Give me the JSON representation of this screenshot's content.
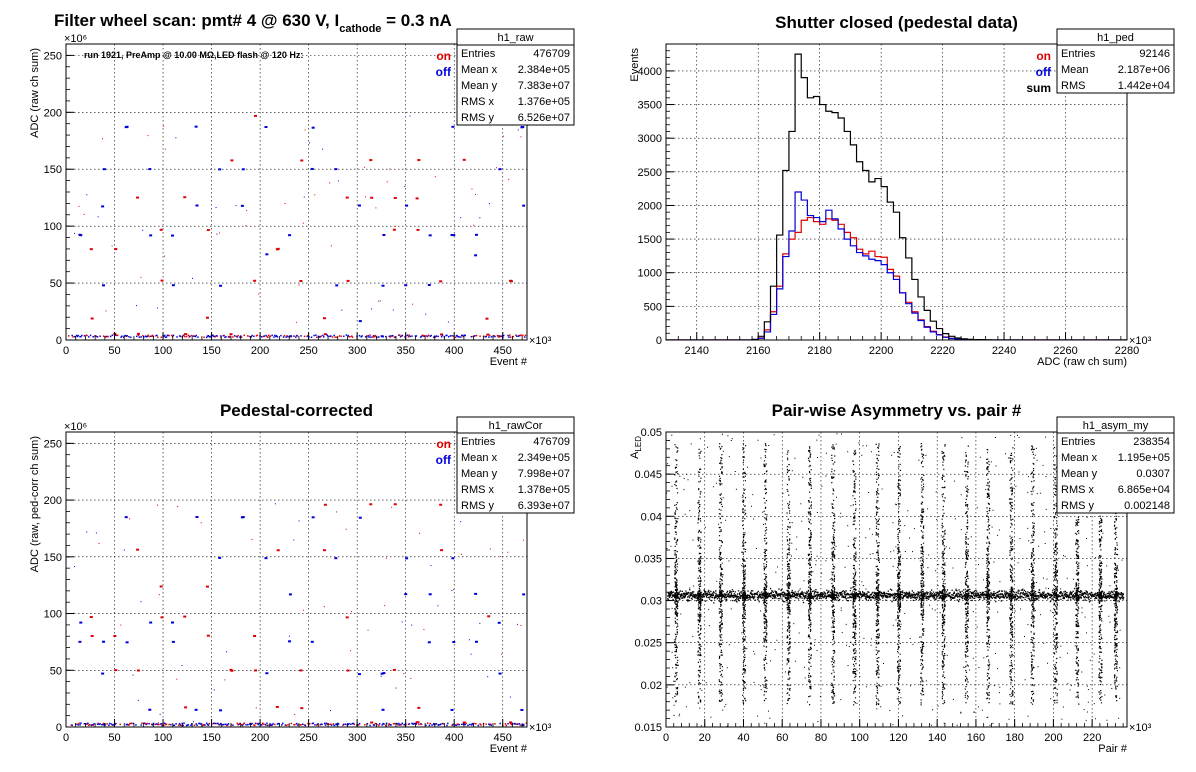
{
  "chart_data": [
    {
      "id": "raw",
      "type": "scatter",
      "title": "Filter wheel scan: pmt#   4 @   630 V, I",
      "title_sub": "cathode",
      "title_tail": "  = 0.3 nA",
      "run_label": "run 1921, PreAmp @ 10.00 MΩ,LED flash @  120 Hz:",
      "xlabel": "Event #",
      "ylabel": "ADC (raw ch sum)",
      "x_exponent": "×10³",
      "y_exponent": "×10⁶",
      "xlim": [
        0,
        475
      ],
      "ylim": [
        0,
        260
      ],
      "xticks": [
        0,
        50,
        100,
        150,
        200,
        250,
        300,
        350,
        400,
        450
      ],
      "yticks": [
        0,
        50,
        100,
        150,
        200,
        250
      ],
      "legend": [
        {
          "name": "on",
          "color": "#e00000"
        },
        {
          "name": "off",
          "color": "#0000dd"
        }
      ],
      "stats": {
        "name": "h1_raw",
        "rows": [
          [
            "Entries",
            "476709"
          ],
          [
            "Mean x",
            "2.384e+05"
          ],
          [
            "Mean y",
            "7.383e+07"
          ],
          [
            "RMS x",
            "1.376e+05"
          ],
          [
            "RMS y",
            "6.526e+07"
          ]
        ]
      },
      "levels_on": [
        197,
        158,
        125,
        97,
        80,
        52,
        19,
        5
      ],
      "levels_off": [
        187,
        150,
        118,
        92,
        75,
        48,
        17,
        3
      ],
      "step_period": 24,
      "x_max": 475
    },
    {
      "id": "ped",
      "type": "histogram",
      "title": "Shutter closed (pedestal data)",
      "xlabel": "ADC (raw ch sum)",
      "ylabel": "Events",
      "x_exponent": "×10³",
      "xlim": [
        2130,
        2280
      ],
      "ylim": [
        0,
        4400
      ],
      "xticks": [
        2140,
        2160,
        2180,
        2200,
        2220,
        2240,
        2260,
        2280
      ],
      "yticks": [
        0,
        500,
        1000,
        1500,
        2000,
        2500,
        3000,
        3500,
        4000
      ],
      "legend": [
        {
          "name": "on",
          "color": "#e00000"
        },
        {
          "name": "off",
          "color": "#0000dd"
        },
        {
          "name": "sum",
          "color": "#000000"
        }
      ],
      "stats": {
        "name": "h1_ped",
        "rows": [
          [
            "Entries",
            "92146"
          ],
          [
            "Mean",
            "2.187e+06"
          ],
          [
            "RMS",
            "1.442e+04"
          ]
        ]
      },
      "bin_width": 2,
      "bin_start": 2130,
      "series": [
        {
          "name": "on",
          "color": "#e00000",
          "values": [
            0,
            0,
            0,
            0,
            0,
            0,
            0,
            0,
            0,
            0,
            0,
            0,
            0,
            0,
            5,
            30,
            150,
            420,
            800,
            1280,
            1500,
            1600,
            1780,
            1820,
            1760,
            1720,
            1800,
            1780,
            1720,
            1600,
            1520,
            1350,
            1280,
            1320,
            1240,
            1230,
            1050,
            950,
            700,
            560,
            420,
            300,
            200,
            130,
            80,
            45,
            25,
            15,
            10,
            5,
            3,
            2,
            1,
            0,
            0,
            0,
            0,
            0,
            0,
            0,
            0,
            0,
            0,
            0,
            0,
            0,
            0,
            0,
            0,
            0,
            0,
            0,
            0,
            0,
            0
          ]
        },
        {
          "name": "off",
          "color": "#0000dd",
          "values": [
            0,
            0,
            0,
            0,
            0,
            0,
            0,
            0,
            0,
            0,
            0,
            0,
            0,
            0,
            5,
            25,
            120,
            380,
            760,
            1240,
            1620,
            2200,
            2080,
            1850,
            1820,
            1760,
            1930,
            1800,
            1650,
            1500,
            1400,
            1300,
            1250,
            1200,
            1180,
            1120,
            1000,
            900,
            700,
            540,
            400,
            290,
            190,
            120,
            75,
            40,
            22,
            12,
            8,
            5,
            3,
            2,
            1,
            0,
            0,
            0,
            0,
            0,
            0,
            0,
            0,
            0,
            0,
            0,
            0,
            0,
            0,
            0,
            0,
            0,
            0,
            0,
            0,
            0,
            0
          ]
        },
        {
          "name": "sum",
          "color": "#000000",
          "values": [
            0,
            0,
            0,
            0,
            0,
            0,
            0,
            0,
            0,
            0,
            0,
            0,
            0,
            0,
            10,
            55,
            270,
            800,
            1560,
            2520,
            3100,
            4250,
            3900,
            3600,
            3620,
            3500,
            3400,
            3380,
            3300,
            3100,
            2900,
            2650,
            2520,
            2350,
            2400,
            2280,
            2050,
            1900,
            1520,
            1220,
            900,
            640,
            440,
            280,
            170,
            95,
            55,
            30,
            18,
            10,
            6,
            4,
            2,
            0,
            0,
            0,
            0,
            0,
            0,
            0,
            0,
            0,
            0,
            0,
            0,
            0,
            0,
            0,
            0,
            0,
            0,
            0,
            0,
            0,
            0
          ]
        }
      ]
    },
    {
      "id": "rawCor",
      "type": "scatter",
      "title": "Pedestal-corrected",
      "xlabel": "Event #",
      "ylabel": "ADC (raw, ped-corr ch sum)",
      "x_exponent": "×10³",
      "y_exponent": "×10⁶",
      "xlim": [
        0,
        475
      ],
      "ylim": [
        0,
        260
      ],
      "xticks": [
        0,
        50,
        100,
        150,
        200,
        250,
        300,
        350,
        400,
        450
      ],
      "yticks": [
        0,
        50,
        100,
        150,
        200,
        250
      ],
      "legend": [
        {
          "name": "on",
          "color": "#e00000"
        },
        {
          "name": "off",
          "color": "#0000dd"
        }
      ],
      "stats": {
        "name": "h1_rawCor",
        "rows": [
          [
            "Entries",
            "476709"
          ],
          [
            "Mean x",
            "2.349e+05"
          ],
          [
            "Mean y",
            "7.998e+07"
          ],
          [
            "RMS x",
            "1.378e+05"
          ],
          [
            "RMS y",
            "6.393e+07"
          ]
        ]
      },
      "levels_on": [
        196,
        156,
        124,
        97,
        80,
        50,
        17,
        4
      ],
      "levels_off": [
        185,
        149,
        117,
        92,
        75,
        47,
        15,
        2
      ],
      "step_period": 24,
      "x_max": 475
    },
    {
      "id": "asym",
      "type": "scatter",
      "title": "Pair-wise Asymmetry vs. pair #",
      "xlabel": "Pair #",
      "ylabel": "A",
      "ylabel_sub": "LED",
      "x_exponent": "×10³",
      "xlim": [
        0,
        238
      ],
      "ylim": [
        0.015,
        0.05
      ],
      "xticks": [
        0,
        20,
        40,
        60,
        80,
        100,
        120,
        140,
        160,
        180,
        200,
        220
      ],
      "yticks": [
        0.015,
        0.02,
        0.025,
        0.03,
        0.035,
        0.04,
        0.045,
        0.05
      ],
      "stats": {
        "name": "h1_asym_my",
        "rows": [
          [
            "Entries",
            "238354"
          ],
          [
            "Mean x",
            "1.195e+05"
          ],
          [
            "Mean y",
            "0.0307"
          ],
          [
            "RMS x",
            "6.865e+04"
          ],
          [
            "RMS y",
            "0.002148"
          ]
        ]
      },
      "band_center": 0.0307,
      "band_width": 0.0012,
      "spike_x": [
        5,
        17,
        28,
        40,
        51,
        63,
        74,
        86,
        97,
        109,
        120,
        132,
        143,
        155,
        166,
        178,
        189,
        201,
        212,
        224,
        232
      ],
      "x_max": 236
    }
  ]
}
